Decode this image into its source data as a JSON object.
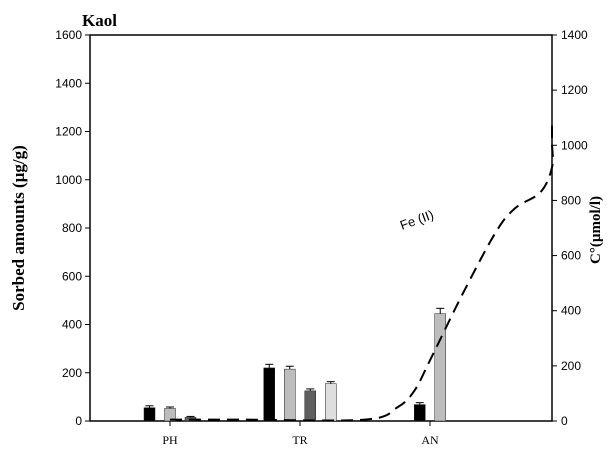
{
  "chart_data": {
    "type": "bar",
    "title": "Kaol",
    "ylabel": "Sorbed amounts (µg/g)",
    "y2label": "C°(µmol/l)",
    "categories": [
      "PH",
      "TR",
      "AN"
    ],
    "ylim": [
      0,
      1600
    ],
    "yticks": [
      0,
      200,
      400,
      600,
      800,
      1000,
      1200,
      1400,
      1600
    ],
    "y2lim": [
      0,
      1400
    ],
    "y2ticks": [
      0,
      200,
      400,
      600,
      800,
      1000,
      1200,
      1400
    ],
    "series": [
      {
        "color": "#000000",
        "values": [
          55,
          220,
          68
        ],
        "errors": [
          8,
          15,
          8
        ]
      },
      {
        "color": "#bdbdbd",
        "values": [
          52,
          215,
          445
        ],
        "errors": [
          6,
          12,
          22
        ]
      },
      {
        "color": "#5f5f5f",
        "values": [
          15,
          125,
          null
        ],
        "errors": [
          4,
          8,
          null
        ]
      },
      {
        "color": "#dedede",
        "values": [
          null,
          155,
          null
        ],
        "errors": [
          null,
          8,
          null
        ]
      }
    ],
    "line": {
      "label": "Fe (II)",
      "axis": "right",
      "style": "dashed",
      "color": "#000000",
      "points": [
        [
          0.0,
          5
        ],
        [
          0.55,
          5
        ],
        [
          1.5,
          5
        ],
        [
          1.75,
          50
        ],
        [
          1.88,
          110
        ],
        [
          2.0,
          220
        ],
        [
          2.25,
          460
        ],
        [
          2.5,
          680
        ],
        [
          2.65,
          770
        ],
        [
          2.85,
          830
        ],
        [
          3.2,
          920
        ],
        [
          3.7,
          1010
        ],
        [
          4.3,
          1090
        ]
      ]
    }
  }
}
